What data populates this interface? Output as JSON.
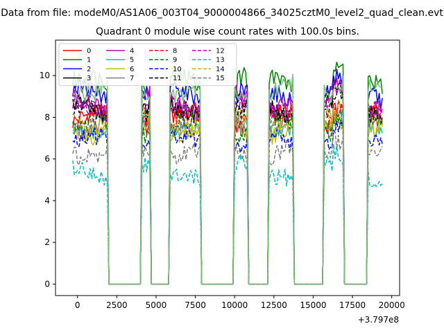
{
  "figure": {
    "suptitle": "Data from file: modeM0/AS1A06_003T04_9000004866_34025cztM0_level2_quad_clean.evt",
    "title": "Quadrant 0 module wise count rates with 100.0s bins."
  },
  "chart_data": {
    "type": "line",
    "xlim": [
      -1400,
      20500
    ],
    "ylim": [
      -0.55,
      11.7
    ],
    "x_ticks": [
      0,
      2500,
      5000,
      7500,
      10000,
      12500,
      15000,
      17500,
      20000
    ],
    "y_ticks": [
      0,
      2,
      4,
      6,
      8,
      10
    ],
    "x_offset_label": "+3.797e8",
    "xlabel": "",
    "ylabel": "",
    "grid": false,
    "legend_placement": "top-left",
    "legend_columns": 4,
    "bin_width": 100,
    "active_segments": [
      [
        -300,
        1900
      ],
      [
        4100,
        4600
      ],
      [
        5900,
        7800
      ],
      [
        10000,
        10800
      ],
      [
        12200,
        13700
      ],
      [
        15700,
        16900
      ],
      [
        18500,
        19400
      ]
    ],
    "inactive_segments": [
      [
        2000,
        4000
      ],
      [
        4700,
        5800
      ],
      [
        7900,
        9900
      ],
      [
        10900,
        12100
      ],
      [
        13800,
        15600
      ],
      [
        17000,
        18400
      ]
    ],
    "series": [
      {
        "name": "0",
        "color": "#ff0000",
        "dash": "solid",
        "level": 7.9
      },
      {
        "name": "1",
        "color": "#008000",
        "dash": "solid",
        "level": 9.6
      },
      {
        "name": "2",
        "color": "#0000ff",
        "dash": "solid",
        "level": 9.1
      },
      {
        "name": "3",
        "color": "#000000",
        "dash": "solid",
        "level": 8.4
      },
      {
        "name": "4",
        "color": "#bf00bf",
        "dash": "solid",
        "level": 8.8
      },
      {
        "name": "5",
        "color": "#00bfbf",
        "dash": "solid",
        "level": 7.6
      },
      {
        "name": "6",
        "color": "#bfbf00",
        "dash": "solid",
        "level": 7.4
      },
      {
        "name": "7",
        "color": "#808080",
        "dash": "solid",
        "level": 7.7
      },
      {
        "name": "8",
        "color": "#ff0000",
        "dash": "dashed",
        "level": 8.0
      },
      {
        "name": "9",
        "color": "#008000",
        "dash": "dashed",
        "level": 7.5
      },
      {
        "name": "10",
        "color": "#0000ff",
        "dash": "dashed",
        "level": 6.8
      },
      {
        "name": "11",
        "color": "#000000",
        "dash": "dashed",
        "level": 8.2
      },
      {
        "name": "12",
        "color": "#bf00bf",
        "dash": "dashed",
        "level": 8.5
      },
      {
        "name": "13",
        "color": "#00bfbf",
        "dash": "dashed",
        "level": 5.4
      },
      {
        "name": "14",
        "color": "#daa520",
        "dash": "dashed",
        "level": 7.8
      },
      {
        "name": "15",
        "color": "#808080",
        "dash": "dashed",
        "level": 6.4
      },
      {
        "name": "",
        "color": "#7fbf7f",
        "dash": "solid",
        "level": 9.3,
        "no_legend": true
      }
    ]
  }
}
